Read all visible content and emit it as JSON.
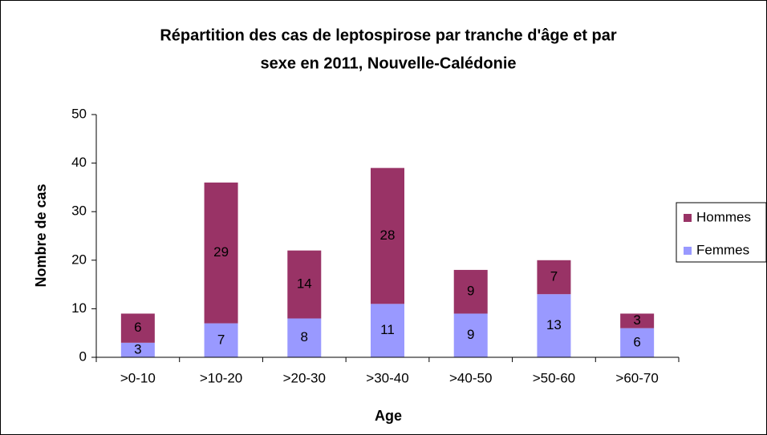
{
  "chart_data": {
    "type": "stacked_bar",
    "title": [
      "Répartition des cas de leptospirose par tranche d'âge et par",
      "sexe en 2011, Nouvelle-Calédonie"
    ],
    "x_label": "Age",
    "y_label": "Nombre de cas",
    "categories": [
      ">0-10",
      ">10-20",
      ">20-30",
      ">30-40",
      ">40-50",
      ">50-60",
      ">60-70"
    ],
    "series": [
      {
        "name": "Femmes",
        "color": "#9999ff",
        "values": [
          3,
          7,
          8,
          11,
          9,
          13,
          6
        ]
      },
      {
        "name": "Hommes",
        "color": "#993366",
        "values": [
          6,
          29,
          14,
          28,
          9,
          7,
          3
        ]
      }
    ],
    "ylim": [
      0,
      50
    ],
    "yticks": [
      0,
      10,
      20,
      30,
      40,
      50
    ],
    "legend": "right"
  }
}
